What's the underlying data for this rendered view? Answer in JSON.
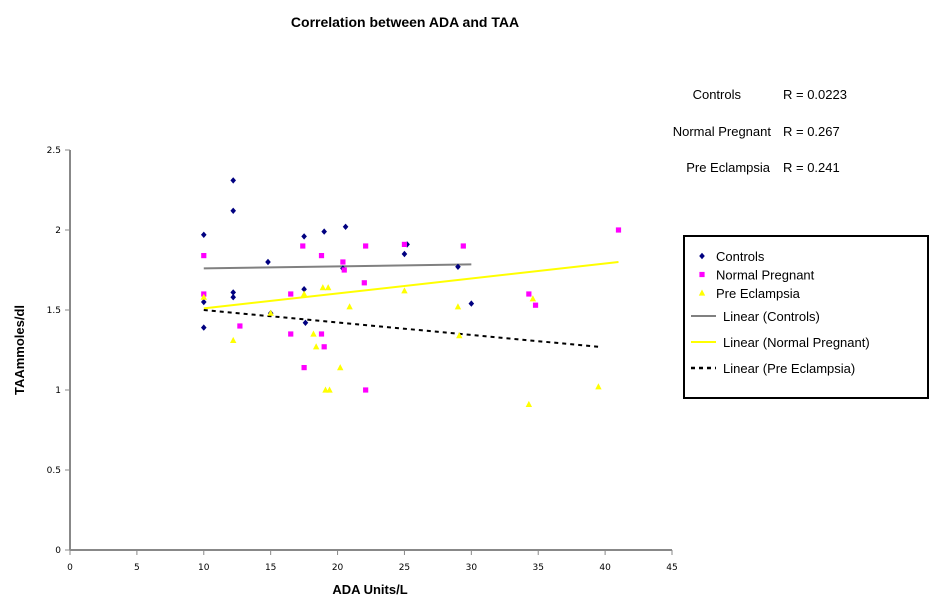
{
  "chart_data": {
    "type": "scatter",
    "title": "Correlation between ADA and TAA",
    "xlabel": "ADA Units/L",
    "ylabel": "TAAmmoles/dl",
    "xlim": [
      0,
      45
    ],
    "ylim": [
      0,
      2.5
    ],
    "x_ticks": [
      0,
      5,
      10,
      15,
      20,
      25,
      30,
      35,
      40,
      45
    ],
    "y_ticks": [
      0,
      0.5,
      1,
      1.5,
      2,
      2.5
    ],
    "x_tick_labels": [
      "0",
      "5",
      "10",
      "15",
      "20",
      "25",
      "30",
      "35",
      "40",
      "45"
    ],
    "y_tick_labels": [
      "0",
      "0.5",
      "1",
      "1.5",
      "2",
      "2.5"
    ],
    "grid": false,
    "legend_position": "right",
    "series": [
      {
        "name": "Controls",
        "marker": "diamond",
        "color": "#000080",
        "points": [
          [
            10,
            1.97
          ],
          [
            10,
            1.55
          ],
          [
            10,
            1.39
          ],
          [
            12.2,
            2.31
          ],
          [
            12.2,
            2.12
          ],
          [
            12.2,
            1.61
          ],
          [
            12.2,
            1.58
          ],
          [
            14.8,
            1.8
          ],
          [
            15,
            1.48
          ],
          [
            17.5,
            1.96
          ],
          [
            17.5,
            1.63
          ],
          [
            17.6,
            1.42
          ],
          [
            19,
            1.99
          ],
          [
            20.6,
            2.02
          ],
          [
            20.4,
            1.76
          ],
          [
            25,
            1.85
          ],
          [
            25.2,
            1.91
          ],
          [
            29,
            1.77
          ],
          [
            30,
            1.54
          ]
        ]
      },
      {
        "name": "Normal Pregnant",
        "marker": "square",
        "color": "#ff00ff",
        "points": [
          [
            10,
            1.84
          ],
          [
            10,
            1.6
          ],
          [
            12.7,
            1.4
          ],
          [
            16.5,
            1.35
          ],
          [
            16.5,
            1.6
          ],
          [
            17.4,
            1.9
          ],
          [
            17.5,
            1.14
          ],
          [
            18.8,
            1.84
          ],
          [
            18.8,
            1.35
          ],
          [
            19,
            1.27
          ],
          [
            20.4,
            1.8
          ],
          [
            20.5,
            1.75
          ],
          [
            22,
            1.67
          ],
          [
            22.1,
            1.9
          ],
          [
            22.1,
            1.0
          ],
          [
            25,
            1.91
          ],
          [
            29.4,
            1.9
          ],
          [
            34.3,
            1.6
          ],
          [
            34.8,
            1.53
          ],
          [
            41,
            2.0
          ]
        ]
      },
      {
        "name": "Pre Eclampsia",
        "marker": "triangle",
        "color": "#ffff00",
        "points": [
          [
            10,
            1.58
          ],
          [
            12.2,
            1.31
          ],
          [
            15,
            1.48
          ],
          [
            17.5,
            1.6
          ],
          [
            18.2,
            1.35
          ],
          [
            18.4,
            1.27
          ],
          [
            18.9,
            1.64
          ],
          [
            19.3,
            1.64
          ],
          [
            19.1,
            1.0
          ],
          [
            19.4,
            1.0
          ],
          [
            20.2,
            1.14
          ],
          [
            20.9,
            1.52
          ],
          [
            25,
            1.62
          ],
          [
            29,
            1.52
          ],
          [
            29.1,
            1.34
          ],
          [
            34.3,
            0.91
          ],
          [
            34.6,
            1.57
          ],
          [
            39.5,
            1.02
          ]
        ]
      }
    ],
    "trendlines": [
      {
        "name": "Linear (Controls)",
        "series": "Controls",
        "style": "solid",
        "color": "#808080",
        "x": [
          10,
          30
        ],
        "y": [
          1.76,
          1.785
        ]
      },
      {
        "name": "Linear (Normal Pregnant)",
        "series": "Normal Pregnant",
        "style": "solid",
        "color": "#ffff00",
        "x": [
          10,
          41
        ],
        "y": [
          1.51,
          1.8
        ]
      },
      {
        "name": "Linear (Pre Eclampsia)",
        "series": "Pre Eclampsia",
        "style": "dashed",
        "color": "#000000",
        "x": [
          10,
          39.5
        ],
        "y": [
          1.5,
          1.27
        ]
      }
    ],
    "annotations": [
      {
        "label": "Controls",
        "value": "R = 0.0223"
      },
      {
        "label": "Normal Pregnant",
        "value": "R = 0.267"
      },
      {
        "label": "Pre Eclampsia",
        "value": "R = 0.241"
      }
    ]
  }
}
